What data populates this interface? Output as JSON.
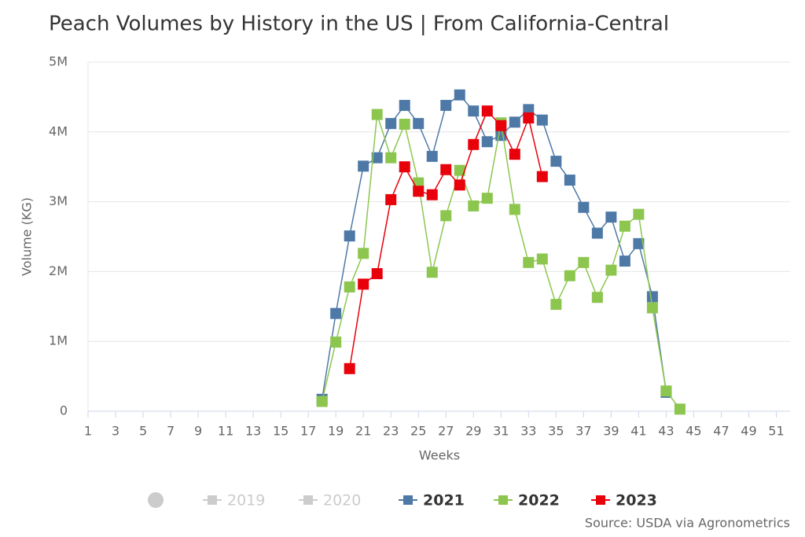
{
  "chart_data": {
    "type": "line",
    "title": "Peach Volumes by History in the US | From California-Central",
    "x_label": "Weeks",
    "y_label": "Volume (KG)",
    "source": "Source: USDA via Agronometrics",
    "xlim": [
      1,
      52
    ],
    "xticks": [
      1,
      3,
      5,
      7,
      9,
      11,
      13,
      15,
      17,
      19,
      21,
      23,
      25,
      27,
      29,
      31,
      33,
      35,
      37,
      39,
      41,
      43,
      45,
      47,
      49,
      51
    ],
    "ylim": [
      0,
      5000000
    ],
    "yticks": [
      0,
      {
        "value": 1000000,
        "label": "1M"
      },
      {
        "value": 2000000,
        "label": "2M"
      },
      {
        "value": 3000000,
        "label": "3M"
      },
      {
        "value": 4000000,
        "label": "4M"
      },
      {
        "value": 5000000,
        "label": "5M"
      }
    ],
    "grid": true,
    "series": [
      {
        "name": "2019",
        "color": "#cccccc",
        "visible": false,
        "x": [],
        "values": []
      },
      {
        "name": "2020",
        "color": "#cccccc",
        "visible": false,
        "x": [],
        "values": []
      },
      {
        "name": "2021",
        "color": "#4e79a7",
        "visible": true,
        "x": [
          18,
          19,
          20,
          21,
          22,
          23,
          24,
          25,
          26,
          27,
          28,
          29,
          30,
          31,
          32,
          33,
          34,
          35,
          36,
          37,
          38,
          39,
          40,
          41,
          42,
          43
        ],
        "values": [
          170000,
          1400000,
          2510000,
          3510000,
          3630000,
          4120000,
          4380000,
          4120000,
          3650000,
          4380000,
          4530000,
          4300000,
          3860000,
          3950000,
          4140000,
          4320000,
          4170000,
          3580000,
          3310000,
          2920000,
          2550000,
          2780000,
          2150000,
          2400000,
          1640000,
          270000
        ]
      },
      {
        "name": "2022",
        "color": "#8dc64f",
        "visible": true,
        "x": [
          18,
          19,
          20,
          21,
          22,
          23,
          24,
          25,
          26,
          27,
          28,
          29,
          30,
          31,
          32,
          33,
          34,
          35,
          36,
          37,
          38,
          39,
          40,
          41,
          42,
          43,
          44
        ],
        "values": [
          140000,
          990000,
          1780000,
          2260000,
          4250000,
          3630000,
          4110000,
          3270000,
          1990000,
          2800000,
          3450000,
          2940000,
          3050000,
          4130000,
          2890000,
          2130000,
          2180000,
          1530000,
          1940000,
          2130000,
          1630000,
          2020000,
          2650000,
          2820000,
          1480000,
          290000,
          30000
        ]
      },
      {
        "name": "2023",
        "color": "#e8000b",
        "visible": true,
        "x": [
          20,
          21,
          22,
          23,
          24,
          25,
          26,
          27,
          28,
          29,
          30,
          31,
          32,
          33,
          34
        ],
        "values": [
          610000,
          1820000,
          1970000,
          3030000,
          3500000,
          3150000,
          3100000,
          3460000,
          3240000,
          3820000,
          4300000,
          4090000,
          3680000,
          4200000,
          3360000
        ]
      }
    ]
  }
}
